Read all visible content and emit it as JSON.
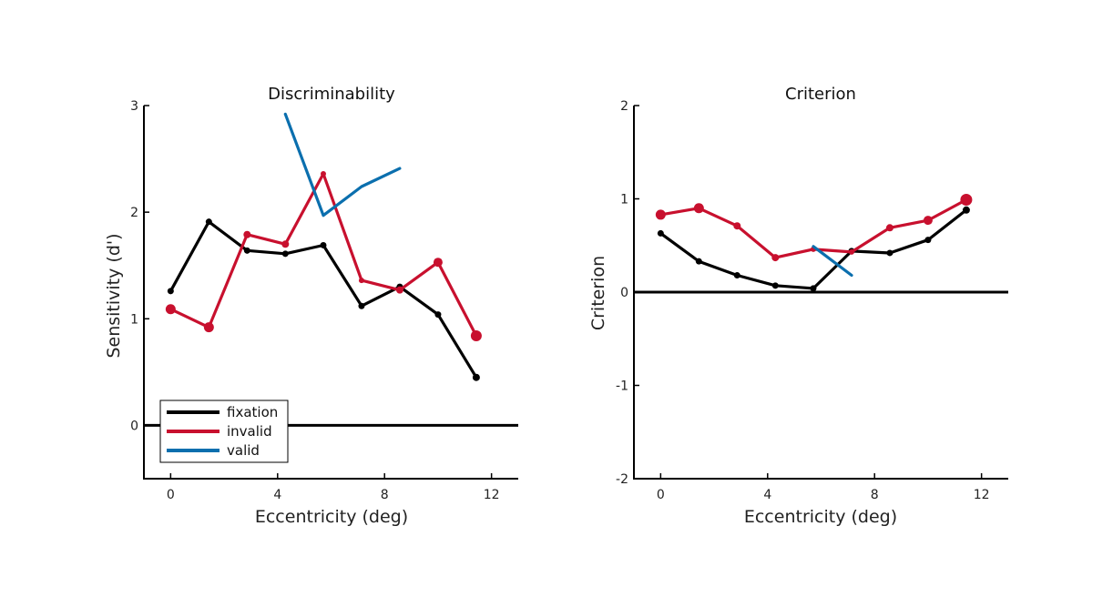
{
  "colors": {
    "fixation": "#000000",
    "invalid": "#c8102e",
    "valid": "#0b6fae"
  },
  "chart_data": [
    {
      "type": "line",
      "title": "Discriminability",
      "xlabel": "Eccentricity (deg)",
      "ylabel": "Sensitivity (d')",
      "xlim": [
        -1,
        13
      ],
      "ylim": [
        -0.5,
        3
      ],
      "xticks": [
        0,
        4,
        8,
        12
      ],
      "yticks": [
        0,
        1,
        2,
        3
      ],
      "zero_line": true,
      "legend": "bottom-left",
      "series": [
        {
          "name": "fixation",
          "color_key": "fixation",
          "markers": true,
          "x": [
            0,
            1.43,
            2.86,
            4.29,
            5.71,
            7.14,
            8.57,
            10,
            11.43
          ],
          "y": [
            1.26,
            1.91,
            1.64,
            1.61,
            1.69,
            1.12,
            1.3,
            1.04,
            0.45
          ],
          "marker_size": [
            3.5,
            3.5,
            3.5,
            3.5,
            3.5,
            3.5,
            3.5,
            3.5,
            4
          ]
        },
        {
          "name": "invalid",
          "color_key": "invalid",
          "markers": true,
          "x": [
            0,
            1.43,
            2.86,
            4.29,
            5.71,
            7.14,
            8.57,
            10,
            11.43
          ],
          "y": [
            1.09,
            0.92,
            1.79,
            1.7,
            2.36,
            1.36,
            1.27,
            1.53,
            0.84
          ],
          "marker_size": [
            5.5,
            5.5,
            4,
            4,
            3,
            3,
            4,
            5,
            6
          ]
        },
        {
          "name": "valid",
          "color_key": "valid",
          "markers": false,
          "x": [
            4.29,
            5.71,
            7.14,
            8.57
          ],
          "y": [
            2.92,
            1.97,
            2.24,
            2.41
          ]
        }
      ]
    },
    {
      "type": "line",
      "title": "Criterion",
      "xlabel": "Eccentricity (deg)",
      "ylabel": "Criterion",
      "xlim": [
        -1,
        13
      ],
      "ylim": [
        -2,
        2
      ],
      "xticks": [
        0,
        4,
        8,
        12
      ],
      "yticks": [
        -2,
        -1,
        0,
        1,
        2
      ],
      "zero_line": true,
      "series": [
        {
          "name": "fixation",
          "color_key": "fixation",
          "markers": true,
          "x": [
            0,
            1.43,
            2.86,
            4.29,
            5.71,
            7.14,
            8.57,
            10,
            11.43
          ],
          "y": [
            0.63,
            0.33,
            0.18,
            0.07,
            0.04,
            0.44,
            0.42,
            0.56,
            0.88
          ],
          "marker_size": [
            3.5,
            3.5,
            3.5,
            3.5,
            3.5,
            3.5,
            3.5,
            3.5,
            4
          ]
        },
        {
          "name": "invalid",
          "color_key": "invalid",
          "markers": true,
          "x": [
            0,
            1.43,
            2.86,
            4.29,
            5.71,
            7.14,
            8.57,
            10,
            11.43
          ],
          "y": [
            0.83,
            0.9,
            0.71,
            0.37,
            0.46,
            0.43,
            0.69,
            0.77,
            0.99
          ],
          "marker_size": [
            5.5,
            5.5,
            4,
            4,
            3,
            3,
            4,
            5,
            6.5
          ]
        },
        {
          "name": "valid",
          "color_key": "valid",
          "markers": false,
          "x": [
            5.71,
            7.14
          ],
          "y": [
            0.49,
            0.18
          ]
        }
      ]
    }
  ],
  "legend": {
    "items": [
      {
        "label": "fixation",
        "color_key": "fixation"
      },
      {
        "label": "invalid",
        "color_key": "invalid"
      },
      {
        "label": "valid",
        "color_key": "valid"
      }
    ]
  }
}
